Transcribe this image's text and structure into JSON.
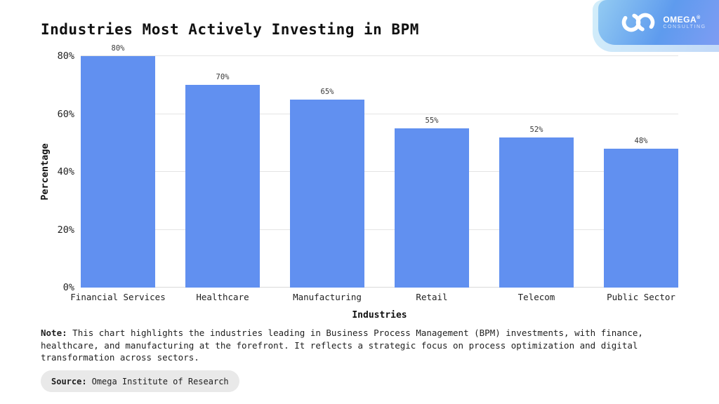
{
  "header": {
    "title": "Industries Most Actively Investing in BPM"
  },
  "logo": {
    "name": "OMEGA",
    "reg": "®",
    "subtitle": "CONSULTING",
    "badge_gradient_start": "#93cbf2",
    "badge_gradient_end": "#7e9cf3"
  },
  "chart_data": {
    "type": "bar",
    "title": "Industries Most Actively Investing in BPM",
    "categories": [
      "Financial Services",
      "Healthcare",
      "Manufacturing",
      "Retail",
      "Telecom",
      "Public Sector"
    ],
    "values": [
      80,
      70,
      65,
      55,
      52,
      48
    ],
    "value_labels": [
      "80%",
      "70%",
      "65%",
      "55%",
      "52%",
      "48%"
    ],
    "xlabel": "Industries",
    "ylabel": "Percentage",
    "ylim": [
      0,
      80
    ],
    "yticks": [
      "0%",
      "20%",
      "40%",
      "60%",
      "80%"
    ],
    "bar_color": "#6190f0",
    "grid": true,
    "legend": false
  },
  "note": {
    "label": "Note:",
    "line1": " This chart highlights the industries leading in Business Process Management (BPM) investments, with finance,",
    "line2": "healthcare, and manufacturing at the forefront. It reflects a strategic focus on process optimization and digital",
    "line3": "transformation across sectors."
  },
  "source": {
    "label": "Source:",
    "text": "Omega Institute of Research"
  }
}
